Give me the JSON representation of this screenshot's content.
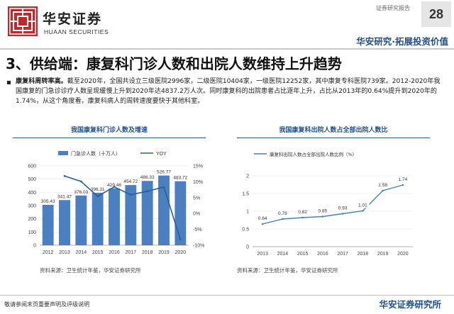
{
  "header": {
    "logo_cn": "华安证券",
    "logo_en": "HUAAN SECURITIES",
    "report_type": "证券研究报告",
    "page_number": "28",
    "slogan": "华安研究·拓展投资价值"
  },
  "section": {
    "title": "3、供给端：康复科门诊人数和出院人数维持上升趋势"
  },
  "body": {
    "lead": "康复科周转率高。",
    "text": "截至2020年，全国共设立三级医院2996家，二级医院10404家，一级医院12252家，其中康复专科医院739家。2012-2020年我国康复的门急诊诊疗人数呈现缓慢上升到2020年达4837.2万人次。同时康复科的出院患者占比逐年上升，占比从2013年的0.64%提升到2020年的1.74%，从这个角度看，康复科病人的周转速度要快于其他科室。"
  },
  "chart_data": [
    {
      "type": "bar",
      "title": "我国康复科门诊人数及增速",
      "categories": [
        "2012",
        "2013",
        "2014",
        "2015",
        "2016",
        "2017",
        "2018",
        "2019",
        "2020"
      ],
      "series": [
        {
          "name": "门急诊人数（十万人）",
          "type": "bar",
          "axis": "left",
          "values": [
            305.43,
            341.47,
            376.03,
            396.31,
            429.46,
            454.72,
            486.33,
            526.77,
            483.72
          ],
          "color": "#4a7fc1"
        },
        {
          "name": "YOY",
          "type": "line",
          "axis": "right",
          "values": [
            null,
            11.8,
            10.1,
            5.4,
            8.4,
            5.9,
            7.0,
            8.3,
            -8.2
          ],
          "color": "#2e5d9a"
        }
      ],
      "ylim_left": [
        0,
        600
      ],
      "yticks_left": [
        "0",
        "100",
        "200",
        "300",
        "400",
        "500",
        "600"
      ],
      "ylim_right": [
        -10,
        15
      ],
      "yticks_right": [
        "-10%",
        "-5%",
        "0%",
        "5%",
        "10%",
        "15%"
      ],
      "bar_labels": [
        "305.43",
        "341.47",
        "376.03",
        "396.31",
        "429.46",
        "454.72",
        "486.33",
        "526.77",
        "483.72"
      ],
      "legend_position": "top",
      "source": "资料来源：卫生统计年鉴，华安证券研究所"
    },
    {
      "type": "line",
      "title": "我国康复科出院人数占全部出院人数比",
      "categories": [
        "2013",
        "2014",
        "2015",
        "2016",
        "2017",
        "2018",
        "2019",
        "2020"
      ],
      "series": [
        {
          "name": "康复科出院人数占全部出院人数比例（%）",
          "values": [
            0.64,
            0.78,
            0.82,
            0.85,
            0.93,
            1.01,
            1.58,
            1.74
          ],
          "color": "#4a7fc1"
        }
      ],
      "ylim": [
        0,
        2
      ],
      "yticks": [
        "0",
        "0.5",
        "1",
        "1.5",
        "2"
      ],
      "point_labels": [
        "0.64",
        "0.78",
        "0.82",
        "0.85",
        "0.93",
        "1.01",
        "1.58",
        "1.74"
      ],
      "legend_position": "top-left",
      "source": "资料来源：卫生统计年鉴，华安证券研究所"
    }
  ],
  "footer": {
    "disclaimer": "敬请参阅末页重要声明及评级说明",
    "brand": "华安证券研究所"
  },
  "colors": {
    "brand": "#1f4e8c",
    "accent": "#4a7fc1",
    "logo_red": "#c0292b"
  }
}
